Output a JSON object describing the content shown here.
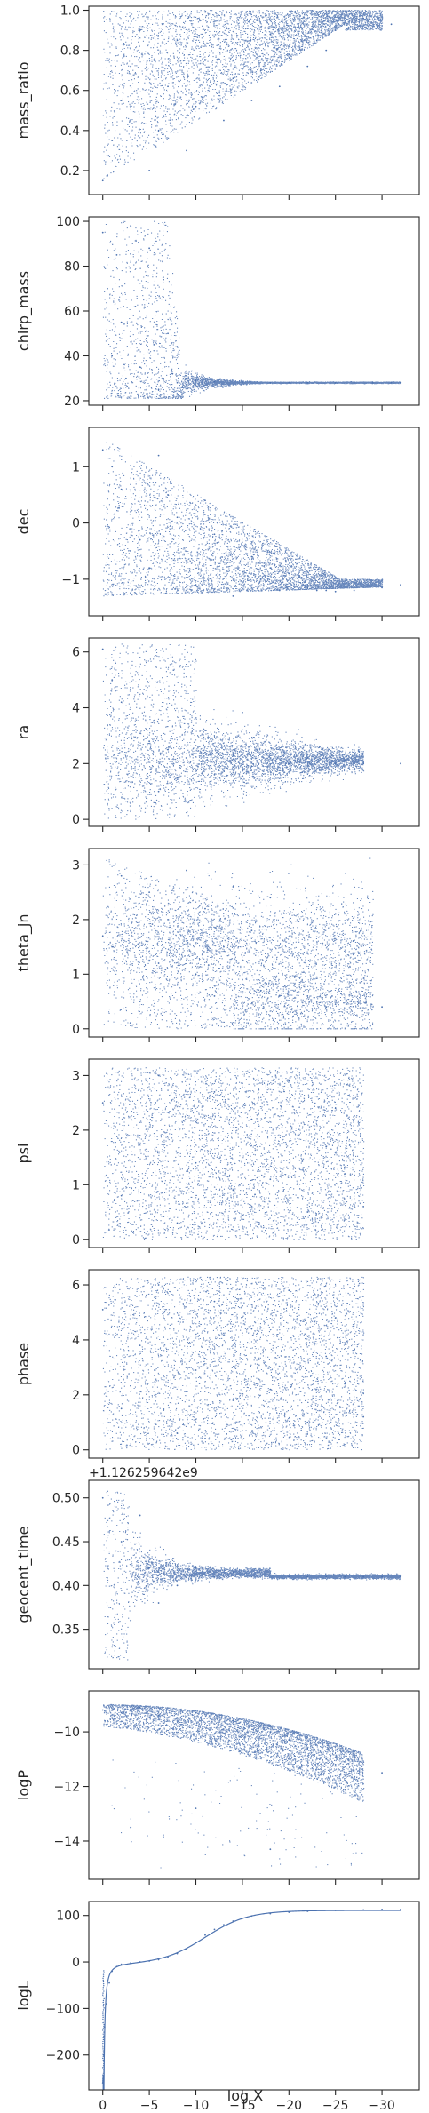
{
  "figure": {
    "xlabel": "log X",
    "point_color": "#4c72b0"
  },
  "chart_data": [
    {
      "type": "scatter",
      "ylabel": "mass_ratio",
      "xlim": [
        1.5,
        -34
      ],
      "ylim": [
        0.08,
        1.02
      ],
      "yticks": [
        0.2,
        0.4,
        0.6,
        0.8,
        1.0
      ],
      "ytick_labels": [
        "0.2",
        "0.4",
        "0.6",
        "0.8",
        "1.0"
      ],
      "pattern": "wedge",
      "points": [
        [
          0,
          0.15
        ],
        [
          -1,
          0.35
        ],
        [
          -2,
          0.55
        ],
        [
          -3,
          0.72
        ],
        [
          -4,
          0.9
        ],
        [
          -5,
          0.2
        ],
        [
          -6,
          0.4
        ],
        [
          -7,
          0.62
        ],
        [
          -8,
          0.85
        ],
        [
          -9,
          0.3
        ],
        [
          -10,
          0.52
        ],
        [
          -11,
          0.75
        ],
        [
          -12,
          0.95
        ],
        [
          -13,
          0.45
        ],
        [
          -14,
          0.66
        ],
        [
          -15,
          0.82
        ],
        [
          -16,
          0.55
        ],
        [
          -17,
          0.7
        ],
        [
          -18,
          0.88
        ],
        [
          -19,
          0.62
        ],
        [
          -20,
          0.78
        ],
        [
          -21,
          0.92
        ],
        [
          -22,
          0.72
        ],
        [
          -23,
          0.85
        ],
        [
          -24,
          0.8
        ],
        [
          -25,
          0.9
        ],
        [
          -26,
          0.95
        ],
        [
          -27,
          0.97
        ],
        [
          -28,
          0.96
        ],
        [
          -31,
          0.93
        ]
      ]
    },
    {
      "type": "scatter",
      "ylabel": "chirp_mass",
      "xlim": [
        1.5,
        -34
      ],
      "ylim": [
        18,
        102
      ],
      "yticks": [
        20,
        40,
        60,
        80,
        100
      ],
      "ytick_labels": [
        "20",
        "40",
        "60",
        "80",
        "100"
      ],
      "pattern": "chirp",
      "points": [
        [
          0,
          95
        ],
        [
          -0.5,
          70
        ],
        [
          -1,
          40
        ],
        [
          -1.5,
          85
        ],
        [
          -2,
          55
        ],
        [
          -2.5,
          30
        ],
        [
          -3,
          98
        ],
        [
          -3.5,
          62
        ],
        [
          -4,
          35
        ],
        [
          -5,
          88
        ],
        [
          -5.5,
          45
        ],
        [
          -6,
          25
        ],
        [
          -6.5,
          75
        ],
        [
          -7,
          50
        ],
        [
          -7.5,
          32
        ],
        [
          -8,
          28
        ],
        [
          -9,
          30
        ],
        [
          -10,
          29
        ],
        [
          -12,
          28.5
        ],
        [
          -15,
          28.2
        ],
        [
          -18,
          28
        ],
        [
          -20,
          28
        ],
        [
          -22,
          28
        ],
        [
          -25,
          28
        ],
        [
          -27,
          28
        ],
        [
          -29,
          28
        ],
        [
          -31,
          28
        ],
        [
          -32,
          28
        ]
      ]
    },
    {
      "type": "scatter",
      "ylabel": "dec",
      "xlim": [
        1.5,
        -34
      ],
      "ylim": [
        -1.65,
        1.7
      ],
      "yticks": [
        -1,
        0,
        1
      ],
      "ytick_labels": [
        "−1",
        "0",
        "1"
      ],
      "pattern": "dec",
      "points": [
        [
          0,
          1.3
        ],
        [
          -1,
          1.0
        ],
        [
          -2,
          0.6
        ],
        [
          -3,
          0.2
        ],
        [
          -4,
          -0.3
        ],
        [
          -5,
          -0.8
        ],
        [
          -6,
          1.2
        ],
        [
          -7,
          0.5
        ],
        [
          -8,
          0.1
        ],
        [
          -9,
          -0.5
        ],
        [
          -10,
          -1.1
        ],
        [
          -11,
          0.4
        ],
        [
          -12,
          -0.2
        ],
        [
          -13,
          -0.7
        ],
        [
          -14,
          -1.3
        ],
        [
          -15,
          0.0
        ],
        [
          -16,
          -0.6
        ],
        [
          -17,
          -1.0
        ],
        [
          -18,
          -0.8
        ],
        [
          -19,
          -1.2
        ],
        [
          -20,
          -0.9
        ],
        [
          -21,
          -1.1
        ],
        [
          -22,
          -1.15
        ],
        [
          -23,
          -1.2
        ],
        [
          -24,
          -1.2
        ],
        [
          -25,
          -1.22
        ],
        [
          -27,
          -1.2
        ],
        [
          -30,
          -1.15
        ],
        [
          -32,
          -1.1
        ]
      ]
    },
    {
      "type": "scatter",
      "ylabel": "ra",
      "xlim": [
        1.5,
        -34
      ],
      "ylim": [
        -0.25,
        6.5
      ],
      "yticks": [
        0,
        2,
        4,
        6
      ],
      "ytick_labels": [
        "0",
        "2",
        "4",
        "6"
      ],
      "pattern": "ra",
      "points": [
        [
          0,
          6.1
        ],
        [
          -1,
          5.0
        ],
        [
          -2,
          4.2
        ],
        [
          -3,
          3.5
        ],
        [
          -4,
          5.8
        ],
        [
          -5,
          2.8
        ],
        [
          -6,
          1.0
        ],
        [
          -7,
          2.5
        ],
        [
          -8,
          1.5
        ],
        [
          -9,
          2.2
        ],
        [
          -10,
          1.8
        ],
        [
          -11,
          2.4
        ],
        [
          -12,
          1.6
        ],
        [
          -14,
          2.3
        ],
        [
          -16,
          1.9
        ],
        [
          -18,
          2.2
        ],
        [
          -20,
          2.0
        ],
        [
          -22,
          2.2
        ],
        [
          -24,
          2.1
        ],
        [
          -25,
          2.0
        ],
        [
          -26,
          2.1
        ],
        [
          -28,
          2.0
        ],
        [
          -32,
          2.0
        ]
      ]
    },
    {
      "type": "scatter",
      "ylabel": "theta_jn",
      "xlim": [
        1.5,
        -34
      ],
      "ylim": [
        -0.15,
        3.3
      ],
      "yticks": [
        0,
        1,
        2,
        3
      ],
      "ytick_labels": [
        "0",
        "1",
        "2",
        "3"
      ],
      "pattern": "theta",
      "points": [
        [
          0,
          1.7
        ],
        [
          -1,
          1.5
        ],
        [
          -2,
          2.8
        ],
        [
          -3,
          1.8
        ],
        [
          -4,
          0.5
        ],
        [
          -5,
          2.5
        ],
        [
          -6,
          1.2
        ],
        [
          -7,
          2.0
        ],
        [
          -8,
          0.8
        ],
        [
          -9,
          2.9
        ],
        [
          -10,
          1.0
        ],
        [
          -11,
          2.2
        ],
        [
          -12,
          0.6
        ],
        [
          -13,
          1.5
        ],
        [
          -14,
          2.6
        ],
        [
          -15,
          0.9
        ],
        [
          -16,
          1.8
        ],
        [
          -17,
          0.7
        ],
        [
          -18,
          2.4
        ],
        [
          -19,
          0.6
        ],
        [
          -20,
          0.8
        ],
        [
          -21,
          0.5
        ],
        [
          -22,
          0.6
        ],
        [
          -23,
          0.5
        ],
        [
          -24,
          0.4
        ],
        [
          -25,
          0.45
        ],
        [
          -27,
          0.5
        ],
        [
          -30,
          0.4
        ]
      ]
    },
    {
      "type": "scatter",
      "ylabel": "psi",
      "xlim": [
        1.5,
        -34
      ],
      "ylim": [
        -0.15,
        3.3
      ],
      "yticks": [
        0,
        1,
        2,
        3
      ],
      "ytick_labels": [
        "0",
        "1",
        "2",
        "3"
      ],
      "pattern": "uniform_pi",
      "points": [
        [
          0,
          2.5
        ],
        [
          -2,
          0.8
        ],
        [
          -4,
          1.9
        ],
        [
          -6,
          3.0
        ],
        [
          -8,
          0.3
        ],
        [
          -10,
          1.4
        ],
        [
          -12,
          2.7
        ],
        [
          -14,
          0.9
        ],
        [
          -16,
          2.2
        ],
        [
          -18,
          1.1
        ],
        [
          -20,
          2.9
        ],
        [
          -22,
          0.5
        ],
        [
          -24,
          1.7
        ],
        [
          -25,
          2.4
        ],
        [
          -26,
          1.2
        ],
        [
          -28,
          0.6
        ]
      ]
    },
    {
      "type": "scatter",
      "ylabel": "phase",
      "xlim": [
        1.5,
        -34
      ],
      "ylim": [
        -0.3,
        6.55
      ],
      "yticks": [
        0,
        2,
        4,
        6
      ],
      "ytick_labels": [
        "0",
        "2",
        "4",
        "6"
      ],
      "pattern": "uniform_2pi",
      "points": [
        [
          0,
          5.1
        ],
        [
          -2,
          1.5
        ],
        [
          -4,
          3.8
        ],
        [
          -6,
          6.0
        ],
        [
          -8,
          0.6
        ],
        [
          -10,
          2.9
        ],
        [
          -12,
          5.4
        ],
        [
          -14,
          1.8
        ],
        [
          -16,
          4.4
        ],
        [
          -18,
          2.2
        ],
        [
          -20,
          5.8
        ],
        [
          -22,
          1.0
        ],
        [
          -24,
          3.4
        ],
        [
          -25,
          4.8
        ],
        [
          -26,
          2.4
        ],
        [
          -28,
          1.2
        ]
      ]
    },
    {
      "type": "scatter",
      "ylabel": "geocent_time",
      "offset_text": "+1.126259642e9",
      "xlim": [
        1.5,
        -34
      ],
      "ylim": [
        0.305,
        0.52
      ],
      "yticks": [
        0.35,
        0.4,
        0.45,
        0.5
      ],
      "ytick_labels": [
        "0.35",
        "0.40",
        "0.45",
        "0.50"
      ],
      "pattern": "geocent",
      "points": [
        [
          0,
          0.5
        ],
        [
          -1,
          0.33
        ],
        [
          -2,
          0.45
        ],
        [
          -3,
          0.36
        ],
        [
          -4,
          0.48
        ],
        [
          -5,
          0.42
        ],
        [
          -6,
          0.38
        ],
        [
          -7,
          0.43
        ],
        [
          -8,
          0.4
        ],
        [
          -10,
          0.42
        ],
        [
          -12,
          0.41
        ],
        [
          -14,
          0.415
        ],
        [
          -16,
          0.41
        ],
        [
          -18,
          0.412
        ],
        [
          -20,
          0.41
        ],
        [
          -22,
          0.41
        ],
        [
          -24,
          0.41
        ],
        [
          -26,
          0.41
        ],
        [
          -28,
          0.41
        ],
        [
          -30,
          0.41
        ],
        [
          -32,
          0.41
        ]
      ]
    },
    {
      "type": "scatter",
      "ylabel": "logP",
      "xlim": [
        1.5,
        -34
      ],
      "ylim": [
        -15.4,
        -8.5
      ],
      "yticks": [
        -14,
        -12,
        -10
      ],
      "ytick_labels": [
        "−14",
        "−12",
        "−10"
      ],
      "pattern": "logp",
      "points": [
        [
          0,
          -9.2
        ],
        [
          -2,
          -9.3
        ],
        [
          -4,
          -9.1
        ],
        [
          -6,
          -9.4
        ],
        [
          -8,
          -9.2
        ],
        [
          -10,
          -9.3
        ],
        [
          -12,
          -9.5
        ],
        [
          -14,
          -9.6
        ],
        [
          -16,
          -9.8
        ],
        [
          -18,
          -10.0
        ],
        [
          -20,
          -10.3
        ],
        [
          -22,
          -10.6
        ],
        [
          -24,
          -11.0
        ],
        [
          -25,
          -11.2
        ],
        [
          -3,
          -13.5
        ],
        [
          -10,
          -12.8
        ],
        [
          -18,
          -14.3
        ],
        [
          -30,
          -11.5
        ]
      ]
    },
    {
      "type": "line",
      "ylabel": "logL",
      "xlim": [
        1.5,
        -34
      ],
      "ylim": [
        -275,
        130
      ],
      "yticks": [
        -200,
        -100,
        0,
        100
      ],
      "ytick_labels": [
        "−200",
        "−100",
        "0",
        "100"
      ],
      "pattern": "loglike",
      "points": [
        [
          0,
          -260
        ],
        [
          -0.1,
          -200
        ],
        [
          -0.2,
          -140
        ],
        [
          -0.4,
          -90
        ],
        [
          -0.7,
          -45
        ],
        [
          -1,
          -20
        ],
        [
          -1.5,
          -10
        ],
        [
          -2,
          -5
        ],
        [
          -3,
          -2
        ],
        [
          -4,
          0
        ],
        [
          -5,
          2
        ],
        [
          -6,
          5
        ],
        [
          -7,
          10
        ],
        [
          -8,
          18
        ],
        [
          -9,
          28
        ],
        [
          -10,
          42
        ],
        [
          -11,
          58
        ],
        [
          -12,
          70
        ],
        [
          -13,
          80
        ],
        [
          -14,
          88
        ],
        [
          -15,
          94
        ],
        [
          -16,
          99
        ],
        [
          -18,
          104
        ],
        [
          -20,
          107
        ],
        [
          -22,
          109
        ],
        [
          -25,
          111
        ],
        [
          -28,
          112
        ],
        [
          -30,
          113
        ],
        [
          -32,
          113
        ]
      ],
      "xticks": [
        0,
        -5,
        -10,
        -15,
        -20,
        -25,
        -30
      ],
      "xtick_labels": [
        "0",
        "−5",
        "−10",
        "−15",
        "−20",
        "−25",
        "−30"
      ]
    }
  ]
}
